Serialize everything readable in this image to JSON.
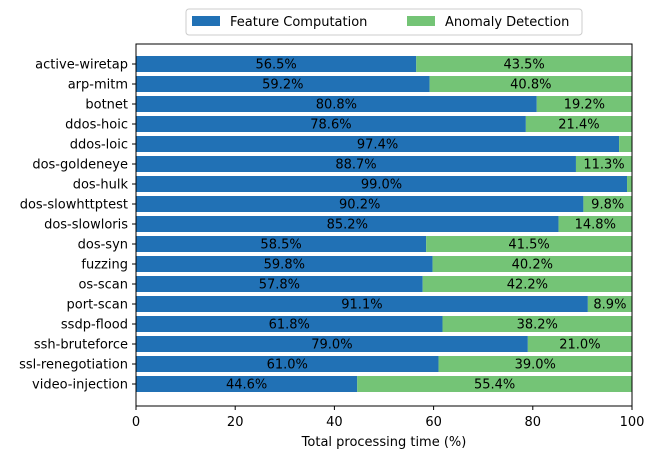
{
  "chart_data": {
    "type": "bar",
    "orientation": "horizontal",
    "stacked": true,
    "title": "",
    "xlabel": "Total processing time (%)",
    "ylabel": "",
    "xlim": [
      0,
      100
    ],
    "xticks": [
      0,
      20,
      40,
      60,
      80,
      100
    ],
    "grid": false,
    "legend_position": "top-center",
    "categories": [
      "active-wiretap",
      "arp-mitm",
      "botnet",
      "ddos-hoic",
      "ddos-loic",
      "dos-goldeneye",
      "dos-hulk",
      "dos-slowhttptest",
      "dos-slowloris",
      "dos-syn",
      "fuzzing",
      "os-scan",
      "port-scan",
      "ssdp-flood",
      "ssh-bruteforce",
      "ssl-renegotiation",
      "video-injection"
    ],
    "series": [
      {
        "name": "Feature Computation",
        "color": "#2171b5",
        "values": [
          56.5,
          59.2,
          80.8,
          78.6,
          97.4,
          88.7,
          99.0,
          90.2,
          85.2,
          58.5,
          59.8,
          57.8,
          91.1,
          61.8,
          79.0,
          61.0,
          44.6
        ],
        "labels": [
          "56.5%",
          "59.2%",
          "80.8%",
          "78.6%",
          "97.4%",
          "88.7%",
          "99.0%",
          "90.2%",
          "85.2%",
          "58.5%",
          "59.8%",
          "57.8%",
          "91.1%",
          "61.8%",
          "79.0%",
          "61.0%",
          "44.6%"
        ]
      },
      {
        "name": "Anomaly Detection",
        "color": "#74c476",
        "values": [
          43.5,
          40.8,
          19.2,
          21.4,
          2.6,
          11.3,
          1.0,
          9.8,
          14.8,
          41.5,
          40.2,
          42.2,
          8.9,
          38.2,
          21.0,
          39.0,
          55.4
        ],
        "labels": [
          "43.5%",
          "40.8%",
          "19.2%",
          "21.4%",
          "",
          "11.3%",
          "",
          "9.8%",
          "14.8%",
          "41.5%",
          "40.2%",
          "42.2%",
          "8.9%",
          "38.2%",
          "21.0%",
          "39.0%",
          "55.4%"
        ]
      }
    ]
  }
}
